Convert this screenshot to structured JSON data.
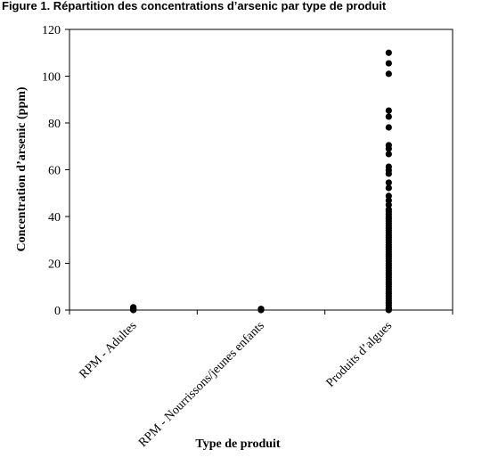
{
  "chart_data": {
    "type": "strip",
    "title": "Figure 1. Répartition des concentrations d’arsenic par type de produit",
    "y_label": "Concentration d’arsenic (ppm)",
    "x_label": "Type de produit",
    "categories": [
      "RPM - Adultes",
      "RPM - Nourrissons/jeunes enfants",
      "Produits d’algues"
    ],
    "values": [
      [
        0,
        0.2,
        0.5,
        1.2
      ],
      [
        0,
        0.3,
        0.5
      ],
      [
        110,
        105.5,
        101,
        85.3,
        82.7,
        78.1,
        70.5,
        69,
        66.7,
        61.3,
        59.8,
        58.3,
        54.5,
        52.2,
        48.8,
        46.9,
        45,
        43,
        42,
        41,
        40,
        39,
        38,
        37,
        36,
        35,
        34,
        33,
        32,
        31,
        30,
        29,
        28,
        27,
        26,
        25,
        24,
        23,
        22,
        21,
        20,
        19,
        18,
        17,
        16,
        15,
        14,
        13,
        12,
        11,
        10,
        9,
        8,
        7,
        6,
        5,
        4,
        3,
        2,
        1,
        0.5,
        0
      ]
    ],
    "color": "#000000",
    "ylim": [
      0,
      120
    ],
    "yticks": [
      0,
      20,
      40,
      60,
      80,
      100,
      120
    ]
  }
}
